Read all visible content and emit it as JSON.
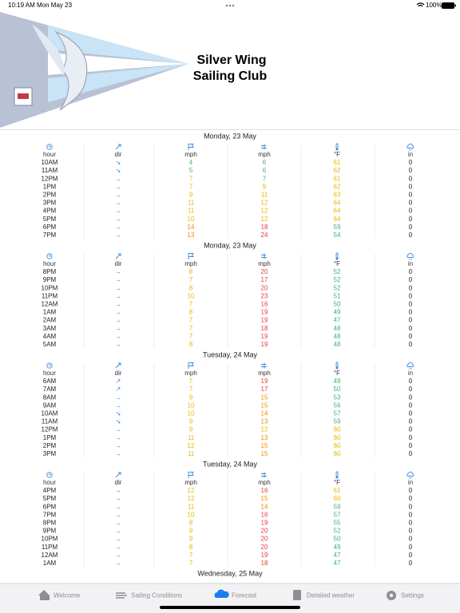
{
  "status_bar": {
    "time": "10:19 AM",
    "date": "Mon May 23",
    "battery": "100%"
  },
  "header": {
    "title_lines": [
      "Silver Wing",
      "Sailing Club"
    ]
  },
  "forecast": {
    "sections": [
      {
        "date": "Monday, 23 May",
        "columns": [
          "hour",
          "dir",
          "mph",
          "mph",
          "°F",
          "in"
        ],
        "rows": [
          [
            "10AM",
            "↘",
            4,
            6,
            61,
            0
          ],
          [
            "11AM",
            "↘",
            5,
            6,
            62,
            0
          ],
          [
            "12PM",
            "→",
            7,
            7,
            61,
            0
          ],
          [
            "1PM",
            "→",
            7,
            9,
            62,
            0
          ],
          [
            "2PM",
            "→",
            9,
            11,
            63,
            0
          ],
          [
            "3PM",
            "→",
            11,
            12,
            64,
            0
          ],
          [
            "4PM",
            "→",
            11,
            12,
            64,
            0
          ],
          [
            "5PM",
            "→",
            10,
            12,
            64,
            0
          ],
          [
            "6PM",
            "→",
            14,
            18,
            59,
            0
          ],
          [
            "7PM",
            "→",
            13,
            24,
            54,
            0
          ]
        ]
      },
      {
        "date": "Monday, 23 May",
        "columns": [
          "hour",
          "dir",
          "mph",
          "mph",
          "°F",
          "in"
        ],
        "rows": [
          [
            "8PM",
            "→",
            8,
            20,
            52,
            0
          ],
          [
            "9PM",
            "→",
            7,
            17,
            52,
            0
          ],
          [
            "10PM",
            "→",
            8,
            20,
            52,
            0
          ],
          [
            "11PM",
            "→",
            10,
            23,
            51,
            0
          ],
          [
            "12AM",
            "→",
            7,
            16,
            50,
            0
          ],
          [
            "1AM",
            "→",
            8,
            19,
            49,
            0
          ],
          [
            "2AM",
            "→",
            7,
            19,
            47,
            0
          ],
          [
            "3AM",
            "→",
            7,
            18,
            48,
            0
          ],
          [
            "4AM",
            "→",
            7,
            19,
            48,
            0
          ],
          [
            "5AM",
            "→",
            8,
            19,
            48,
            0
          ]
        ]
      },
      {
        "date": "Tuesday, 24 May",
        "columns": [
          "hour",
          "dir",
          "mph",
          "mph",
          "°F",
          "in"
        ],
        "rows": [
          [
            "6AM",
            "↗",
            7,
            19,
            49,
            0
          ],
          [
            "7AM",
            "↗",
            7,
            17,
            50,
            0
          ],
          [
            "8AM",
            "→",
            9,
            15,
            53,
            0
          ],
          [
            "9AM",
            "→",
            10,
            15,
            56,
            0
          ],
          [
            "10AM",
            "↘",
            10,
            14,
            57,
            0
          ],
          [
            "11AM",
            "↘",
            9,
            13,
            59,
            0
          ],
          [
            "12PM",
            "→",
            9,
            12,
            60,
            0
          ],
          [
            "1PM",
            "→",
            11,
            13,
            60,
            0
          ],
          [
            "2PM",
            "→",
            12,
            15,
            60,
            0
          ],
          [
            "3PM",
            "→",
            11,
            15,
            60,
            0
          ]
        ]
      },
      {
        "date": "Tuesday, 24 May",
        "columns": [
          "hour",
          "dir",
          "mph",
          "mph",
          "°F",
          "in"
        ],
        "rows": [
          [
            "4PM",
            "→",
            12,
            16,
            61,
            0
          ],
          [
            "5PM",
            "→",
            12,
            15,
            60,
            0
          ],
          [
            "6PM",
            "→",
            11,
            14,
            59,
            0
          ],
          [
            "7PM",
            "→",
            10,
            16,
            57,
            0
          ],
          [
            "8PM",
            "→",
            8,
            19,
            55,
            0
          ],
          [
            "9PM",
            "→",
            9,
            20,
            52,
            0
          ],
          [
            "10PM",
            "→",
            9,
            20,
            50,
            0
          ],
          [
            "11PM",
            "→",
            8,
            20,
            49,
            0
          ],
          [
            "12AM",
            "→",
            7,
            19,
            47,
            0
          ],
          [
            "1AM",
            "→",
            7,
            18,
            47,
            0
          ]
        ]
      },
      {
        "date": "Wednesday, 25 May",
        "rows": []
      }
    ]
  },
  "tab_bar": {
    "tabs": [
      "Welcome",
      "Sailing Conditions",
      "Forecast",
      "Detailed weather",
      "Settings"
    ],
    "active": 2
  }
}
